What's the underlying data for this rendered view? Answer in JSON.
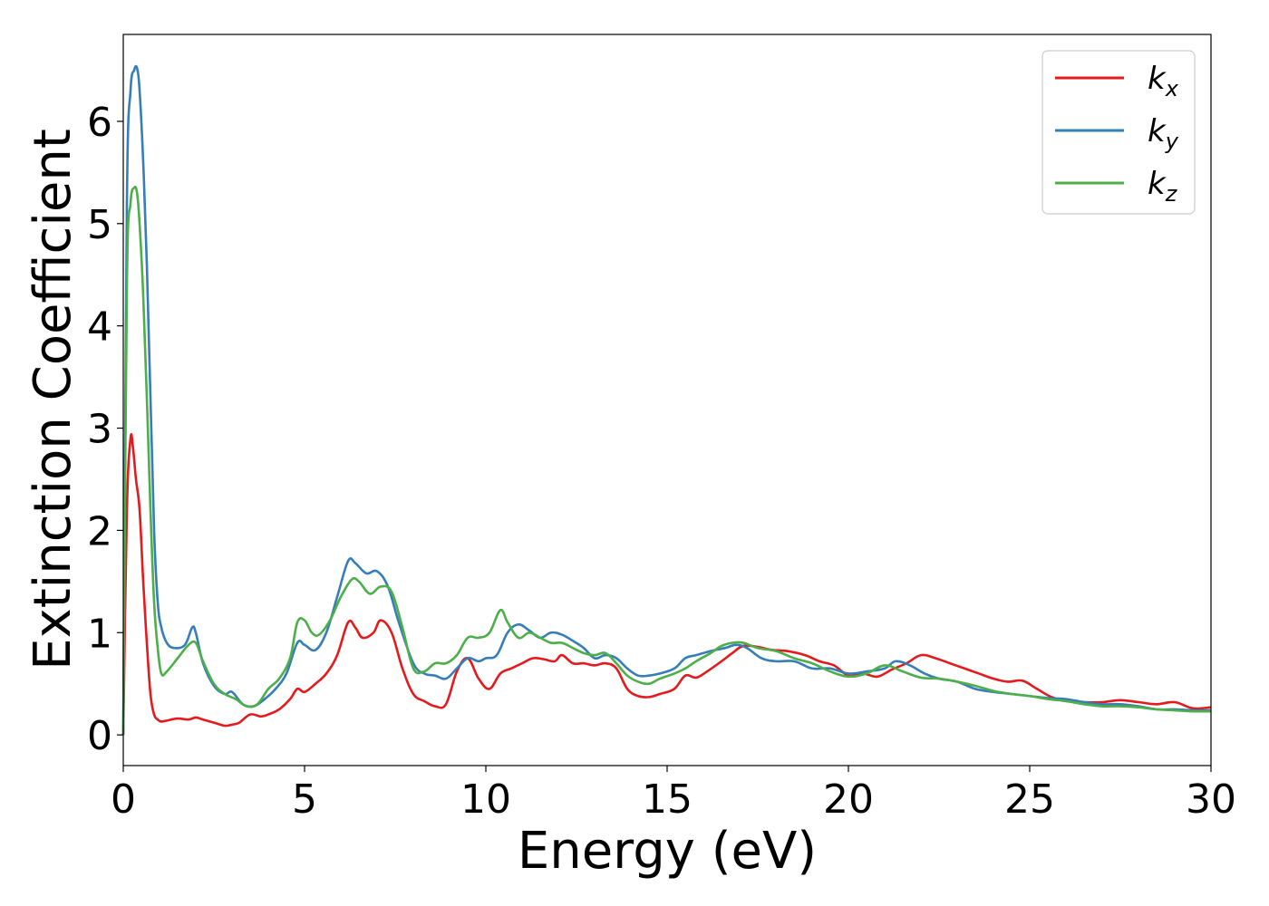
{
  "chart_data": {
    "type": "line",
    "title": "",
    "xlabel": "Energy (eV)",
    "ylabel": "Extinction Coefficient",
    "xlim": [
      0,
      30
    ],
    "ylim": [
      -0.3,
      6.85
    ],
    "xticks": [
      0,
      5,
      10,
      15,
      20,
      25,
      30
    ],
    "yticks": [
      0,
      1,
      2,
      3,
      4,
      5,
      6
    ],
    "grid": false,
    "legend_position": "top-right",
    "series": [
      {
        "name": "k_x",
        "label_main": "k",
        "label_sub": "x",
        "color": "#e41a1c",
        "x": [
          0,
          0.1,
          0.2,
          0.27,
          0.35,
          0.45,
          0.55,
          0.65,
          0.75,
          0.85,
          0.95,
          1.05,
          1.2,
          1.5,
          1.8,
          2.0,
          2.2,
          2.5,
          2.8,
          3.0,
          3.2,
          3.5,
          3.8,
          4.0,
          4.3,
          4.6,
          4.8,
          5.0,
          5.3,
          5.6,
          5.9,
          6.2,
          6.4,
          6.6,
          6.9,
          7.1,
          7.4,
          7.7,
          8.0,
          8.3,
          8.6,
          8.9,
          9.2,
          9.5,
          9.8,
          10.1,
          10.4,
          10.7,
          11.0,
          11.3,
          11.6,
          11.9,
          12.1,
          12.4,
          12.7,
          13.0,
          13.3,
          13.6,
          13.9,
          14.2,
          14.5,
          14.8,
          15.2,
          15.5,
          15.8,
          16.1,
          16.5,
          16.8,
          17.1,
          17.5,
          17.9,
          18.3,
          18.8,
          19.2,
          19.6,
          20.0,
          20.4,
          20.8,
          21.2,
          21.6,
          22.0,
          22.4,
          22.8,
          23.2,
          23.6,
          24.0,
          24.4,
          24.8,
          25.2,
          25.6,
          26.0,
          26.5,
          27.0,
          27.5,
          28.0,
          28.5,
          29.0,
          29.5,
          30.0
        ],
        "values": [
          0,
          2.2,
          2.9,
          2.8,
          2.5,
          2.2,
          1.5,
          0.9,
          0.4,
          0.2,
          0.15,
          0.13,
          0.14,
          0.16,
          0.15,
          0.17,
          0.15,
          0.12,
          0.09,
          0.1,
          0.12,
          0.2,
          0.18,
          0.2,
          0.25,
          0.35,
          0.45,
          0.42,
          0.5,
          0.6,
          0.78,
          1.1,
          1.05,
          0.95,
          1.0,
          1.12,
          1.0,
          0.65,
          0.4,
          0.33,
          0.28,
          0.3,
          0.62,
          0.75,
          0.55,
          0.45,
          0.6,
          0.65,
          0.7,
          0.75,
          0.74,
          0.72,
          0.78,
          0.7,
          0.7,
          0.68,
          0.7,
          0.65,
          0.45,
          0.38,
          0.37,
          0.4,
          0.45,
          0.58,
          0.56,
          0.62,
          0.72,
          0.8,
          0.87,
          0.86,
          0.83,
          0.82,
          0.78,
          0.72,
          0.68,
          0.58,
          0.6,
          0.57,
          0.64,
          0.7,
          0.78,
          0.75,
          0.7,
          0.65,
          0.6,
          0.55,
          0.52,
          0.53,
          0.45,
          0.37,
          0.33,
          0.32,
          0.32,
          0.34,
          0.32,
          0.3,
          0.32,
          0.26,
          0.27
        ]
      },
      {
        "name": "k_y",
        "label_main": "k",
        "label_sub": "y",
        "color": "#377eb8",
        "x": [
          0,
          0.1,
          0.2,
          0.3,
          0.38,
          0.45,
          0.55,
          0.65,
          0.75,
          0.85,
          0.95,
          1.05,
          1.2,
          1.4,
          1.7,
          1.9,
          2.0,
          2.2,
          2.5,
          2.8,
          3.0,
          3.3,
          3.6,
          3.9,
          4.2,
          4.5,
          4.8,
          5.0,
          5.3,
          5.6,
          5.9,
          6.2,
          6.4,
          6.7,
          7.0,
          7.3,
          7.6,
          8.0,
          8.3,
          8.6,
          8.9,
          9.2,
          9.5,
          9.8,
          10.0,
          10.3,
          10.6,
          10.9,
          11.2,
          11.5,
          11.8,
          12.1,
          12.4,
          12.7,
          13.0,
          13.3,
          13.6,
          13.9,
          14.2,
          14.5,
          14.8,
          15.2,
          15.5,
          15.8,
          16.2,
          16.6,
          16.9,
          17.2,
          17.6,
          18.0,
          18.5,
          19.0,
          19.5,
          20.0,
          20.5,
          21.0,
          21.3,
          21.7,
          22.1,
          22.5,
          23.0,
          23.5,
          24.0,
          24.5,
          25.0,
          25.5,
          26.0,
          26.5,
          27.0,
          27.5,
          28.0,
          28.5,
          29.0,
          29.5,
          30.0
        ],
        "values": [
          0,
          5.2,
          6.3,
          6.5,
          6.52,
          6.3,
          5.6,
          4.6,
          3.3,
          2.0,
          1.3,
          1.05,
          0.9,
          0.85,
          0.88,
          1.05,
          1.0,
          0.7,
          0.48,
          0.4,
          0.42,
          0.3,
          0.28,
          0.35,
          0.45,
          0.6,
          0.9,
          0.88,
          0.83,
          1.0,
          1.35,
          1.7,
          1.68,
          1.58,
          1.6,
          1.45,
          1.1,
          0.7,
          0.6,
          0.58,
          0.55,
          0.65,
          0.75,
          0.72,
          0.75,
          0.78,
          1.0,
          1.08,
          1.02,
          0.95,
          1.0,
          0.98,
          0.92,
          0.85,
          0.75,
          0.78,
          0.75,
          0.65,
          0.58,
          0.58,
          0.6,
          0.65,
          0.75,
          0.78,
          0.82,
          0.85,
          0.88,
          0.85,
          0.75,
          0.72,
          0.72,
          0.65,
          0.65,
          0.6,
          0.62,
          0.65,
          0.72,
          0.68,
          0.6,
          0.55,
          0.52,
          0.45,
          0.42,
          0.4,
          0.38,
          0.36,
          0.35,
          0.32,
          0.3,
          0.3,
          0.28,
          0.25,
          0.25,
          0.24,
          0.24
        ]
      },
      {
        "name": "k_z",
        "label_main": "k",
        "label_sub": "z",
        "color": "#4daf4a",
        "x": [
          0,
          0.1,
          0.2,
          0.3,
          0.38,
          0.45,
          0.55,
          0.65,
          0.75,
          0.85,
          0.95,
          1.05,
          1.2,
          1.5,
          1.8,
          2.0,
          2.2,
          2.5,
          2.8,
          3.1,
          3.4,
          3.7,
          4.0,
          4.3,
          4.6,
          4.8,
          5.0,
          5.2,
          5.4,
          5.7,
          6.0,
          6.3,
          6.5,
          6.8,
          7.1,
          7.4,
          7.7,
          8.0,
          8.3,
          8.6,
          8.9,
          9.2,
          9.5,
          9.8,
          10.1,
          10.4,
          10.6,
          10.9,
          11.2,
          11.5,
          11.8,
          12.1,
          12.4,
          12.7,
          13.0,
          13.3,
          13.6,
          13.9,
          14.2,
          14.5,
          14.8,
          15.2,
          15.5,
          15.8,
          16.2,
          16.5,
          16.8,
          17.1,
          17.5,
          18.0,
          18.5,
          19.0,
          19.5,
          20.0,
          20.5,
          21.0,
          21.5,
          22.0,
          22.5,
          23.0,
          23.5,
          24.0,
          24.5,
          25.0,
          25.5,
          26.0,
          26.5,
          27.0,
          27.5,
          28.0,
          28.5,
          29.0,
          29.5,
          30.0
        ],
        "values": [
          0,
          4.4,
          5.2,
          5.35,
          5.3,
          5.0,
          4.3,
          3.3,
          2.2,
          1.3,
          0.85,
          0.6,
          0.62,
          0.75,
          0.88,
          0.9,
          0.72,
          0.5,
          0.4,
          0.35,
          0.28,
          0.3,
          0.45,
          0.55,
          0.75,
          1.1,
          1.12,
          1.0,
          0.98,
          1.12,
          1.35,
          1.52,
          1.5,
          1.38,
          1.45,
          1.4,
          1.05,
          0.65,
          0.62,
          0.7,
          0.7,
          0.78,
          0.95,
          0.95,
          1.0,
          1.22,
          1.1,
          0.95,
          1.0,
          0.95,
          0.9,
          0.9,
          0.85,
          0.8,
          0.78,
          0.8,
          0.7,
          0.58,
          0.52,
          0.5,
          0.55,
          0.6,
          0.65,
          0.72,
          0.8,
          0.87,
          0.9,
          0.9,
          0.85,
          0.82,
          0.75,
          0.7,
          0.62,
          0.57,
          0.6,
          0.68,
          0.62,
          0.56,
          0.55,
          0.52,
          0.48,
          0.43,
          0.4,
          0.38,
          0.35,
          0.33,
          0.3,
          0.28,
          0.28,
          0.27,
          0.25,
          0.24,
          0.23,
          0.23
        ]
      }
    ]
  }
}
